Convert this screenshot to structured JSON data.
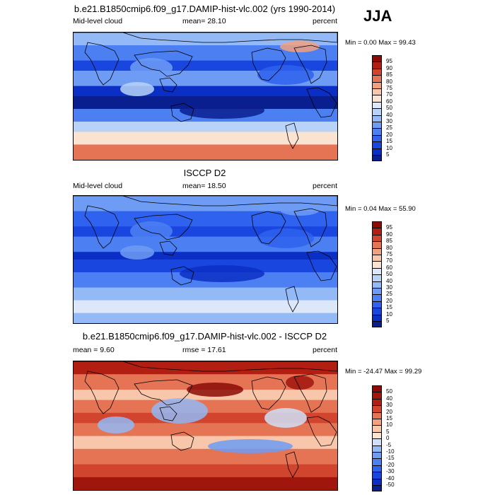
{
  "season": "JJA",
  "panels": [
    {
      "title": "b.e21.B1850cmip6.f09_g17.DAMIP-hist-vlc.002 (yrs 1990-2014)",
      "left_label": "Mid-level cloud",
      "center_label": "mean=  28.10",
      "right_label": "percent",
      "minmax": "Min =   0.00 Max =  99.43",
      "colorbar_levels": [
        "5",
        "10",
        "15",
        "20",
        "25",
        "30",
        "40",
        "50",
        "60",
        "70",
        "75",
        "80",
        "85",
        "90",
        "95"
      ],
      "colorbar_colors": [
        "#0a1f8f",
        "#0b2fc4",
        "#1a46e0",
        "#2f62ee",
        "#4c80f2",
        "#6e9cf4",
        "#93b9f6",
        "#b9d3f8",
        "#dce8fa",
        "#fbe3d2",
        "#f8c6aa",
        "#f2a07e",
        "#e57455",
        "#d1452f",
        "#b31e12",
        "#8c0b07"
      ],
      "palette": "abs"
    },
    {
      "title": "ISCCP D2",
      "left_label": "Mid-level cloud",
      "center_label": "mean=  18.50",
      "right_label": "percent",
      "minmax": "Min =   0.04 Max =  55.90",
      "colorbar_levels": [
        "5",
        "10",
        "15",
        "20",
        "25",
        "30",
        "40",
        "50",
        "60",
        "70",
        "75",
        "80",
        "85",
        "90",
        "95"
      ],
      "colorbar_colors": [
        "#0a1f8f",
        "#0b2fc4",
        "#1a46e0",
        "#2f62ee",
        "#4c80f2",
        "#6e9cf4",
        "#93b9f6",
        "#b9d3f8",
        "#dce8fa",
        "#fbe3d2",
        "#f8c6aa",
        "#f2a07e",
        "#e57455",
        "#d1452f",
        "#b31e12",
        "#8c0b07"
      ],
      "palette": "abs"
    },
    {
      "title": "b.e21.B1850cmip6.f09_g17.DAMIP-hist-vlc.002 - ISCCP D2",
      "left_label": "mean =   9.60",
      "center_label": "rmse =  17.61",
      "right_label": "percent",
      "minmax": "Min = -24.47 Max =  99.29",
      "colorbar_levels": [
        "-50",
        "-40",
        "-30",
        "-20",
        "-15",
        "-10",
        "-5",
        "0",
        "5",
        "10",
        "15",
        "20",
        "30",
        "40",
        "50"
      ],
      "colorbar_colors": [
        "#0a1f8f",
        "#0b2fc4",
        "#1a46e0",
        "#2f62ee",
        "#4c80f2",
        "#6e9cf4",
        "#93b9f6",
        "#cfe0f8",
        "#fbe3d2",
        "#f8c6aa",
        "#f2a07e",
        "#e57455",
        "#d1452f",
        "#b31e12",
        "#a0150c",
        "#8c0b07"
      ],
      "palette": "diff"
    }
  ]
}
